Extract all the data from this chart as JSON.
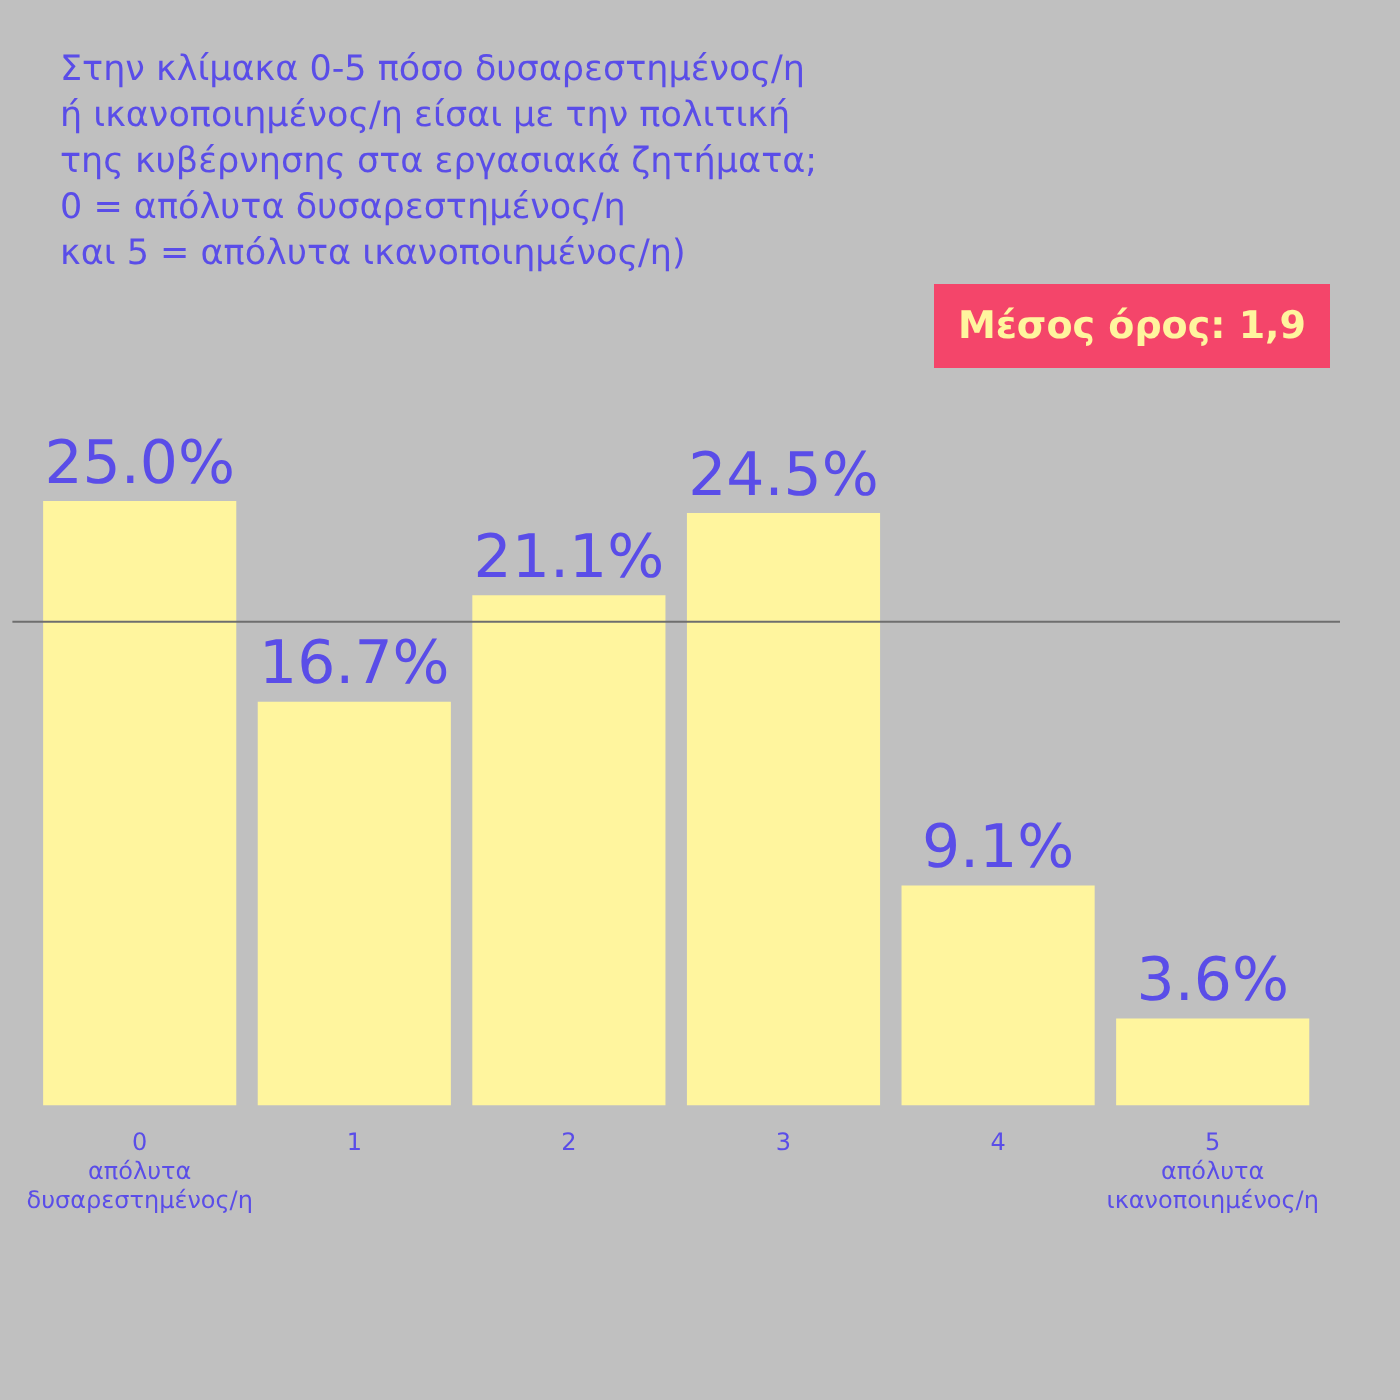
{
  "chart_data": {
    "type": "bar",
    "title": "Στην κλίμακα 0-5 πόσο δυσαρεστημένος/η\nή ικανοποιημένος/η είσαι με την πολιτική\nτης κυβέρνησης στα εργασιακά ζητήματα;\n0 = απόλυτα δυσαρεστημένος/η\nκαι 5 = απόλυτα ικανοποιημένος/η)",
    "categories": [
      "0\nαπόλυτα\nδυσαρεστημένος/η",
      "1",
      "2",
      "3",
      "4",
      "5\nαπόλυτα\nικανοποιημένος/η"
    ],
    "values": [
      25.0,
      16.7,
      21.1,
      24.5,
      9.1,
      3.6
    ],
    "value_labels": [
      "25.0%",
      "16.7%",
      "21.1%",
      "24.5%",
      "9.1%",
      "3.6%"
    ],
    "color": "#fff59e",
    "ref_lines": [
      {
        "axis": "y",
        "value": 20,
        "color": "#6e6e6e"
      }
    ],
    "annotations": [
      "Μέσος όρος: 1,9"
    ],
    "grid": false,
    "legend": false
  }
}
